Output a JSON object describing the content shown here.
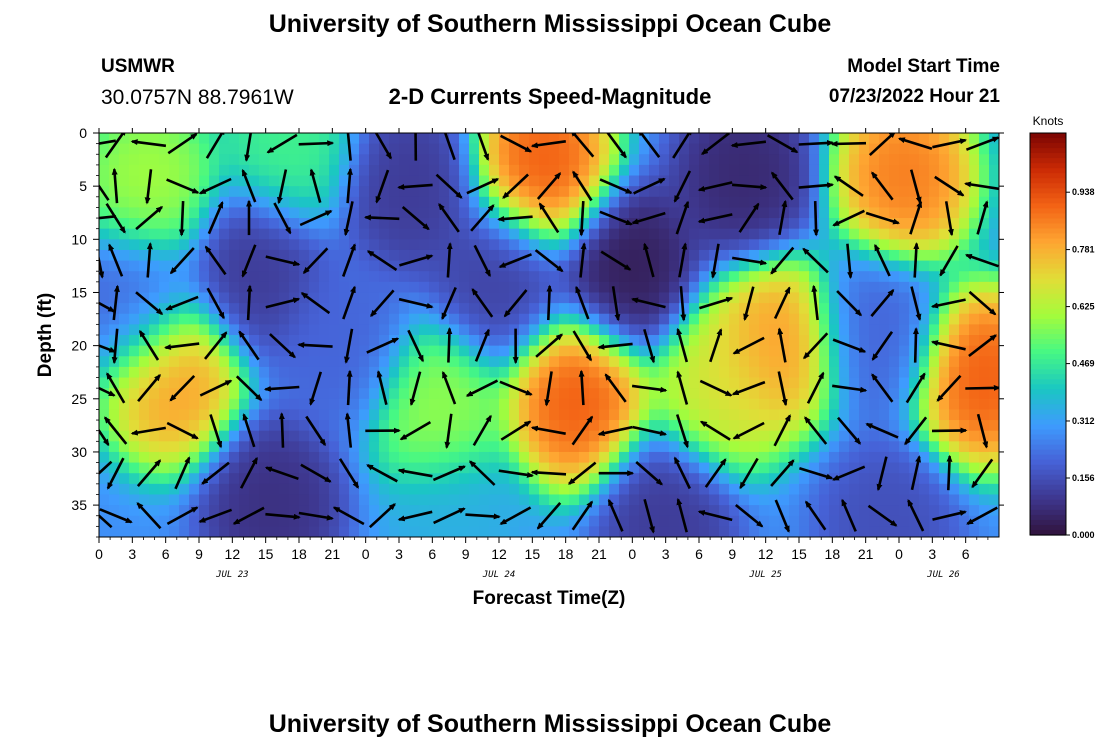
{
  "header": {
    "main_title": "University of Southern Mississippi Ocean Cube",
    "station_name": "USMWR",
    "station_coords": "30.0757N  88.7961W",
    "plot_title": "2-D Currents Speed-Magnitude",
    "model_start_label": "Model Start Time",
    "model_start_value": "07/23/2022 Hour 21",
    "bottom_title": "University of Southern Mississippi Ocean Cube"
  },
  "chart_data": {
    "type": "heatmap",
    "title": "2-D Currents Speed-Magnitude",
    "xlabel": "Forecast Time(Z)",
    "ylabel": "Depth (ft)",
    "xlim": [
      0,
      81
    ],
    "ylim": [
      38,
      0
    ],
    "x_ticks": [
      "0",
      "3",
      "6",
      "9",
      "12",
      "15",
      "18",
      "21",
      "0",
      "3",
      "6",
      "9",
      "12",
      "15",
      "18",
      "21",
      "0",
      "3",
      "6",
      "9",
      "12",
      "15",
      "18",
      "21",
      "0",
      "3",
      "6"
    ],
    "y_ticks": [
      0,
      5,
      10,
      15,
      20,
      25,
      30,
      35
    ],
    "date_labels": [
      {
        "label": "JUL 23",
        "hour": 12
      },
      {
        "label": "JUL 24",
        "hour": 36
      },
      {
        "label": "JUL 25",
        "hour": 60
      },
      {
        "label": "JUL 26",
        "hour": 76
      }
    ],
    "colorbar": {
      "units": "Knots",
      "min": 0.0,
      "max": 1.1,
      "ticks": [
        "0.000",
        "0.156",
        "0.312",
        "0.469",
        "0.625",
        "0.781",
        "0.938"
      ]
    },
    "colormap": [
      "#30123b",
      "#3e378f",
      "#4662d7",
      "#3e9bfe",
      "#1ac7c2",
      "#46f884",
      "#a4fc3c",
      "#e1dd37",
      "#fea632",
      "#f36315",
      "#cb2a04",
      "#7a0403"
    ],
    "speed_features": [
      {
        "hour": 4.5,
        "depth": 5,
        "speed": 0.62
      },
      {
        "hour": 6.5,
        "depth": 23,
        "speed": 0.85
      },
      {
        "hour": 17,
        "depth": 1,
        "speed": 0.5
      },
      {
        "hour": 14,
        "depth": 13,
        "speed": 0.1
      },
      {
        "hour": 15.5,
        "depth": 35,
        "speed": 0.07
      },
      {
        "hour": 30.5,
        "depth": 26,
        "speed": 0.6
      },
      {
        "hour": 28,
        "depth": 5,
        "speed": 0.1
      },
      {
        "hour": 36,
        "depth": 14,
        "speed": 0.12
      },
      {
        "hour": 40,
        "depth": 3,
        "speed": 0.95
      },
      {
        "hour": 43,
        "depth": 25,
        "speed": 0.95
      },
      {
        "hour": 47.5,
        "depth": 13,
        "speed": 0.02
      },
      {
        "hour": 51,
        "depth": 36,
        "speed": 0.1
      },
      {
        "hour": 58,
        "depth": 4,
        "speed": 0.05
      },
      {
        "hour": 56,
        "depth": 24,
        "speed": 0.7
      },
      {
        "hour": 61,
        "depth": 20,
        "speed": 0.85
      },
      {
        "hour": 72.5,
        "depth": 4,
        "speed": 0.9
      },
      {
        "hour": 70,
        "depth": 19,
        "speed": 0.2
      },
      {
        "hour": 79.5,
        "depth": 23,
        "speed": 0.95
      },
      {
        "hour": 71,
        "depth": 37,
        "speed": 0.15
      },
      {
        "hour": 3,
        "depth": 16,
        "speed": 0.2
      },
      {
        "hour": 22,
        "depth": 20,
        "speed": 0.2
      },
      {
        "hour": 32,
        "depth": 37,
        "speed": 0.35
      }
    ],
    "vector_hours": [
      0,
      1.5,
      4.5,
      7.5,
      10.5,
      13.5,
      16.5,
      19.5,
      22.5,
      25.5,
      28.5,
      31.5,
      34.5,
      37.5,
      40.5,
      43.5,
      46.5,
      49.5,
      52.5,
      55.5,
      58.5,
      61.5,
      64.5,
      67.5,
      70.5,
      73.5,
      76.5,
      79.5
    ],
    "vector_depths": [
      1,
      5,
      8,
      12,
      16,
      20,
      24,
      28,
      32,
      36
    ]
  }
}
